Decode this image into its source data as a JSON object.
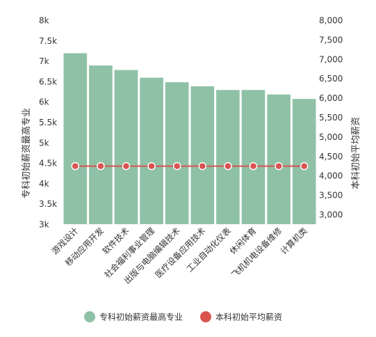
{
  "chart_data": {
    "type": "bar",
    "categories": [
      "游戏设计",
      "移动应用开发",
      "软件技术",
      "社会福利事业管理",
      "出版与电脑编辑技术",
      "医疗设备应用技术",
      "工业自动化仪表",
      "休闲体育",
      "飞机机电设备维修",
      "计算机类"
    ],
    "series": [
      {
        "name": "专科初始薪资最高专业",
        "kind": "bar",
        "axis": "left",
        "color": "#8fc1a6",
        "values": [
          7190,
          6890,
          6780,
          6590,
          6480,
          6380,
          6290,
          6290,
          6180,
          6070
        ]
      },
      {
        "name": "本科初始平均薪资",
        "kind": "line",
        "axis": "right",
        "color": "#d9534f",
        "values": [
          4245,
          4245,
          4245,
          4245,
          4245,
          4245,
          4245,
          4245,
          4245,
          4245
        ]
      }
    ],
    "y_left": {
      "label": "专科初始薪资最高专业",
      "ylim": [
        3000,
        8000
      ],
      "ticks": [
        3000,
        3500,
        4000,
        4500,
        5000,
        5500,
        6000,
        6500,
        7000,
        7500,
        8000
      ],
      "tick_labels": [
        "3k",
        "3.5k",
        "4k",
        "4.5k",
        "5k",
        "5.5k",
        "6k",
        "6.5k",
        "7k",
        "7.5k",
        "8k"
      ]
    },
    "y_right": {
      "label": "本科初始平均薪资",
      "ylim": [
        2750,
        8000
      ],
      "ticks": [
        3000,
        3500,
        4000,
        4500,
        5000,
        5500,
        6000,
        6500,
        7000,
        7500,
        8000
      ],
      "tick_labels": [
        "3,000",
        "3,500",
        "4,000",
        "4,500",
        "5,000",
        "5,500",
        "6,000",
        "6,500",
        "7,000",
        "7,500",
        "8,000"
      ]
    },
    "grid": false,
    "legend_position": "bottom"
  }
}
